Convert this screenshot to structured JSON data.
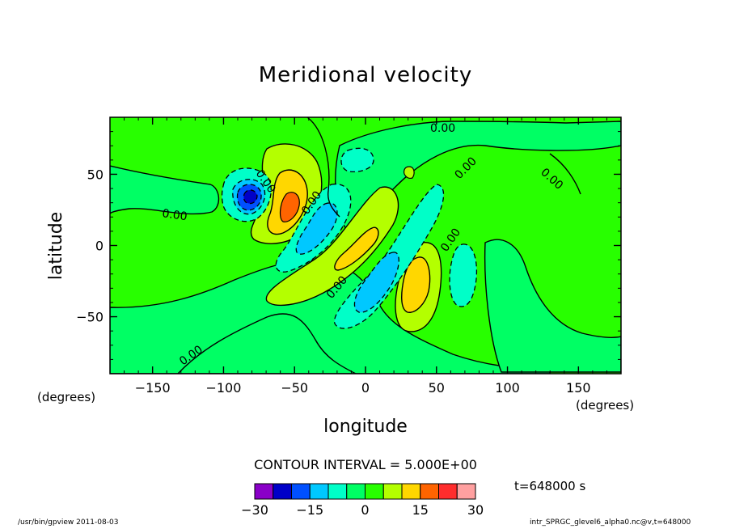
{
  "chart_data": {
    "type": "contour",
    "title": "Meridional velocity",
    "xlabel": "longitude",
    "ylabel": "latitude",
    "x_units": "(degrees)",
    "y_units": "(degrees)",
    "xlim": [
      -180,
      180
    ],
    "ylim": [
      -90,
      90
    ],
    "x_ticks": [
      -150,
      -100,
      -50,
      0,
      50,
      100,
      150
    ],
    "x_tick_labels": [
      "−150",
      "−100",
      "−50",
      "0",
      "50",
      "100",
      "150"
    ],
    "y_ticks": [
      50,
      0,
      -50
    ],
    "y_tick_labels": [
      "50",
      "0",
      "−50"
    ],
    "contour_interval_text": "CONTOUR INTERVAL = 5.000E+00",
    "contour_interval": 5,
    "contour_label": "0.00",
    "time_text": "t=648000 s",
    "colorbar": {
      "min": -30,
      "max": 30,
      "tick_values": [
        -30,
        -15,
        0,
        15,
        30
      ],
      "tick_labels": [
        "−30",
        "−15",
        "0",
        "15",
        "30"
      ],
      "colors": [
        "#8a00c8",
        "#0000c8",
        "#0050ff",
        "#00c8ff",
        "#00ffc8",
        "#00ff64",
        "#28ff00",
        "#b4ff00",
        "#ffd700",
        "#ff6400",
        "#ff2d2d",
        "#ffa0a0"
      ]
    },
    "extrema": [
      {
        "name": "min-center",
        "lon": -82,
        "lat": 35,
        "value": -25
      },
      {
        "name": "max-upper",
        "lon": -52,
        "lat": 30,
        "value": 15
      },
      {
        "name": "min-upper",
        "lon": -30,
        "lat": 15,
        "value": -10
      },
      {
        "name": "max-center",
        "lon": -8,
        "lat": 0,
        "value": 10
      },
      {
        "name": "min-lower",
        "lon": 10,
        "lat": -30,
        "value": -10
      },
      {
        "name": "max-lower",
        "lon": 38,
        "lat": -25,
        "value": 10
      },
      {
        "name": "min-right",
        "lon": 70,
        "lat": -20,
        "value": -5
      }
    ]
  },
  "footer": {
    "left": "/usr/bin/gpview  2011-08-03",
    "right": "intr_SPRGC_glevel6_alpha0.nc@v,t=648000"
  }
}
